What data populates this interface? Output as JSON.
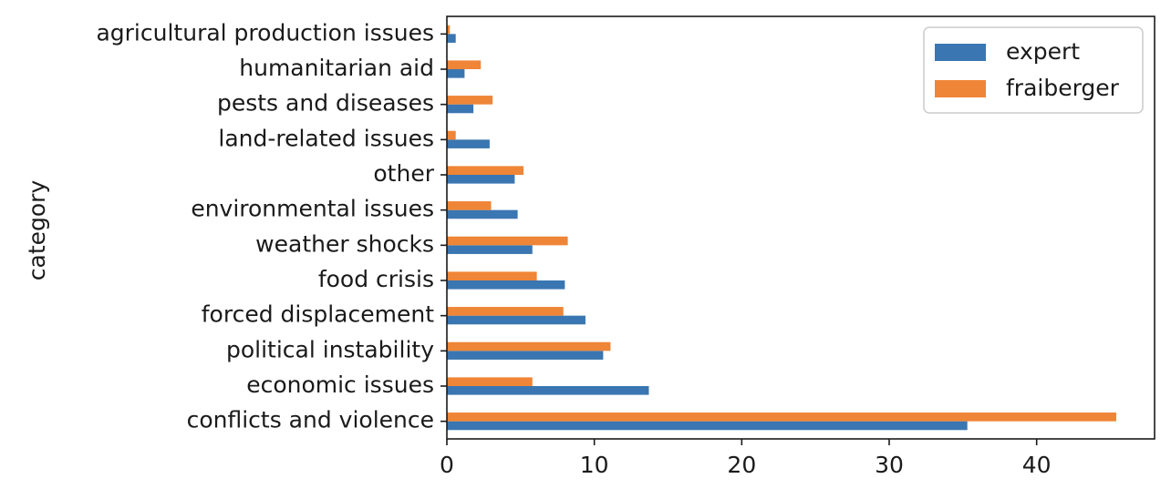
{
  "chart_data": {
    "type": "bar",
    "orientation": "horizontal",
    "ylabel": "category",
    "xlabel": "",
    "xlim": [
      0,
      48
    ],
    "xticks": [
      0,
      10,
      20,
      30,
      40
    ],
    "categories": [
      "conflicts and violence",
      "economic issues",
      "political instability",
      "forced displacement",
      "food crisis",
      "weather shocks",
      "environmental issues",
      "other",
      "land-related issues",
      "pests and diseases",
      "humanitarian aid",
      "agricultural production issues"
    ],
    "series": [
      {
        "name": "expert",
        "color": "#3a76b1",
        "values": [
          35.3,
          13.7,
          10.6,
          9.4,
          8.0,
          5.8,
          4.8,
          4.6,
          2.9,
          1.8,
          1.2,
          0.6
        ]
      },
      {
        "name": "fraiberger",
        "color": "#ef8536",
        "values": [
          45.4,
          5.8,
          11.1,
          7.9,
          6.1,
          8.2,
          3.0,
          5.2,
          0.6,
          3.1,
          2.3,
          0.2
        ]
      }
    ],
    "legend_position": "top-right",
    "grid": false
  }
}
